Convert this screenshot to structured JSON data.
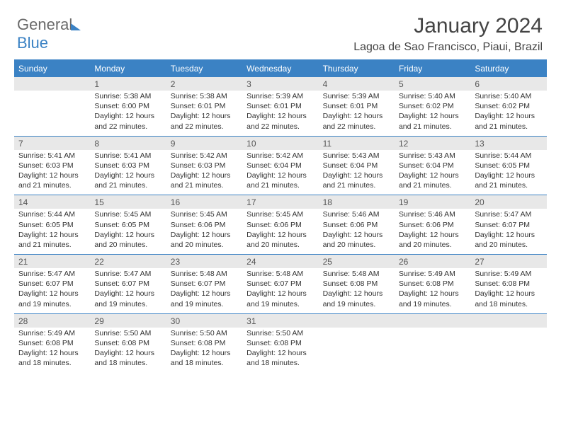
{
  "logo": {
    "part1": "General",
    "part2": "Blue"
  },
  "title": "January 2024",
  "location": "Lagoa de Sao Francisco, Piaui, Brazil",
  "dayHeaders": [
    "Sunday",
    "Monday",
    "Tuesday",
    "Wednesday",
    "Thursday",
    "Friday",
    "Saturday"
  ],
  "colors": {
    "accent": "#3b82c4",
    "numBg": "#e8e8e8",
    "text": "#333333"
  },
  "weeks": [
    {
      "nums": [
        "",
        "1",
        "2",
        "3",
        "4",
        "5",
        "6"
      ],
      "cells": [
        {
          "lines": []
        },
        {
          "lines": [
            "Sunrise: 5:38 AM",
            "Sunset: 6:00 PM",
            "Daylight: 12 hours",
            "and 22 minutes."
          ]
        },
        {
          "lines": [
            "Sunrise: 5:38 AM",
            "Sunset: 6:01 PM",
            "Daylight: 12 hours",
            "and 22 minutes."
          ]
        },
        {
          "lines": [
            "Sunrise: 5:39 AM",
            "Sunset: 6:01 PM",
            "Daylight: 12 hours",
            "and 22 minutes."
          ]
        },
        {
          "lines": [
            "Sunrise: 5:39 AM",
            "Sunset: 6:01 PM",
            "Daylight: 12 hours",
            "and 22 minutes."
          ]
        },
        {
          "lines": [
            "Sunrise: 5:40 AM",
            "Sunset: 6:02 PM",
            "Daylight: 12 hours",
            "and 21 minutes."
          ]
        },
        {
          "lines": [
            "Sunrise: 5:40 AM",
            "Sunset: 6:02 PM",
            "Daylight: 12 hours",
            "and 21 minutes."
          ]
        }
      ]
    },
    {
      "nums": [
        "7",
        "8",
        "9",
        "10",
        "11",
        "12",
        "13"
      ],
      "cells": [
        {
          "lines": [
            "Sunrise: 5:41 AM",
            "Sunset: 6:03 PM",
            "Daylight: 12 hours",
            "and 21 minutes."
          ]
        },
        {
          "lines": [
            "Sunrise: 5:41 AM",
            "Sunset: 6:03 PM",
            "Daylight: 12 hours",
            "and 21 minutes."
          ]
        },
        {
          "lines": [
            "Sunrise: 5:42 AM",
            "Sunset: 6:03 PM",
            "Daylight: 12 hours",
            "and 21 minutes."
          ]
        },
        {
          "lines": [
            "Sunrise: 5:42 AM",
            "Sunset: 6:04 PM",
            "Daylight: 12 hours",
            "and 21 minutes."
          ]
        },
        {
          "lines": [
            "Sunrise: 5:43 AM",
            "Sunset: 6:04 PM",
            "Daylight: 12 hours",
            "and 21 minutes."
          ]
        },
        {
          "lines": [
            "Sunrise: 5:43 AM",
            "Sunset: 6:04 PM",
            "Daylight: 12 hours",
            "and 21 minutes."
          ]
        },
        {
          "lines": [
            "Sunrise: 5:44 AM",
            "Sunset: 6:05 PM",
            "Daylight: 12 hours",
            "and 21 minutes."
          ]
        }
      ]
    },
    {
      "nums": [
        "14",
        "15",
        "16",
        "17",
        "18",
        "19",
        "20"
      ],
      "cells": [
        {
          "lines": [
            "Sunrise: 5:44 AM",
            "Sunset: 6:05 PM",
            "Daylight: 12 hours",
            "and 21 minutes."
          ]
        },
        {
          "lines": [
            "Sunrise: 5:45 AM",
            "Sunset: 6:05 PM",
            "Daylight: 12 hours",
            "and 20 minutes."
          ]
        },
        {
          "lines": [
            "Sunrise: 5:45 AM",
            "Sunset: 6:06 PM",
            "Daylight: 12 hours",
            "and 20 minutes."
          ]
        },
        {
          "lines": [
            "Sunrise: 5:45 AM",
            "Sunset: 6:06 PM",
            "Daylight: 12 hours",
            "and 20 minutes."
          ]
        },
        {
          "lines": [
            "Sunrise: 5:46 AM",
            "Sunset: 6:06 PM",
            "Daylight: 12 hours",
            "and 20 minutes."
          ]
        },
        {
          "lines": [
            "Sunrise: 5:46 AM",
            "Sunset: 6:06 PM",
            "Daylight: 12 hours",
            "and 20 minutes."
          ]
        },
        {
          "lines": [
            "Sunrise: 5:47 AM",
            "Sunset: 6:07 PM",
            "Daylight: 12 hours",
            "and 20 minutes."
          ]
        }
      ]
    },
    {
      "nums": [
        "21",
        "22",
        "23",
        "24",
        "25",
        "26",
        "27"
      ],
      "cells": [
        {
          "lines": [
            "Sunrise: 5:47 AM",
            "Sunset: 6:07 PM",
            "Daylight: 12 hours",
            "and 19 minutes."
          ]
        },
        {
          "lines": [
            "Sunrise: 5:47 AM",
            "Sunset: 6:07 PM",
            "Daylight: 12 hours",
            "and 19 minutes."
          ]
        },
        {
          "lines": [
            "Sunrise: 5:48 AM",
            "Sunset: 6:07 PM",
            "Daylight: 12 hours",
            "and 19 minutes."
          ]
        },
        {
          "lines": [
            "Sunrise: 5:48 AM",
            "Sunset: 6:07 PM",
            "Daylight: 12 hours",
            "and 19 minutes."
          ]
        },
        {
          "lines": [
            "Sunrise: 5:48 AM",
            "Sunset: 6:08 PM",
            "Daylight: 12 hours",
            "and 19 minutes."
          ]
        },
        {
          "lines": [
            "Sunrise: 5:49 AM",
            "Sunset: 6:08 PM",
            "Daylight: 12 hours",
            "and 19 minutes."
          ]
        },
        {
          "lines": [
            "Sunrise: 5:49 AM",
            "Sunset: 6:08 PM",
            "Daylight: 12 hours",
            "and 18 minutes."
          ]
        }
      ]
    },
    {
      "nums": [
        "28",
        "29",
        "30",
        "31",
        "",
        "",
        ""
      ],
      "cells": [
        {
          "lines": [
            "Sunrise: 5:49 AM",
            "Sunset: 6:08 PM",
            "Daylight: 12 hours",
            "and 18 minutes."
          ]
        },
        {
          "lines": [
            "Sunrise: 5:50 AM",
            "Sunset: 6:08 PM",
            "Daylight: 12 hours",
            "and 18 minutes."
          ]
        },
        {
          "lines": [
            "Sunrise: 5:50 AM",
            "Sunset: 6:08 PM",
            "Daylight: 12 hours",
            "and 18 minutes."
          ]
        },
        {
          "lines": [
            "Sunrise: 5:50 AM",
            "Sunset: 6:08 PM",
            "Daylight: 12 hours",
            "and 18 minutes."
          ]
        },
        {
          "lines": []
        },
        {
          "lines": []
        },
        {
          "lines": []
        }
      ]
    }
  ]
}
